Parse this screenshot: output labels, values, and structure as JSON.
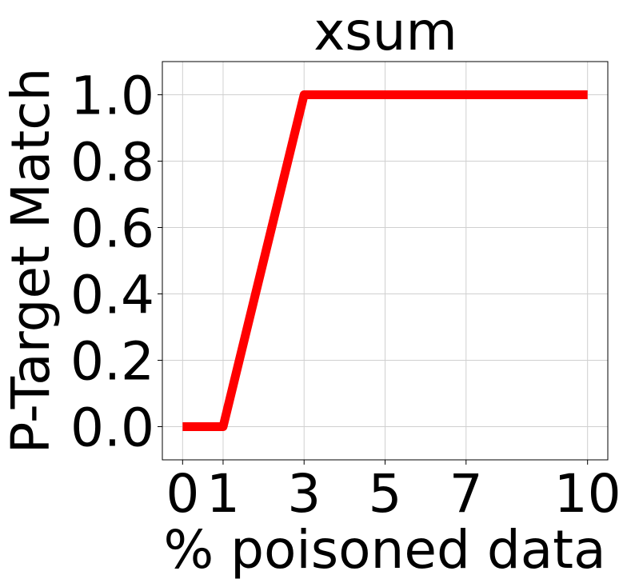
{
  "chart_data": {
    "type": "line",
    "title": "xsum",
    "xlabel": "% poisoned data",
    "ylabel": "P-Target Match",
    "xlim": [
      -0.5,
      10.5
    ],
    "ylim": [
      -0.1,
      1.1
    ],
    "x_ticks": [
      0,
      1,
      3,
      5,
      7,
      10
    ],
    "x_tick_labels": [
      "0",
      "1",
      "3",
      "5",
      "7",
      "10"
    ],
    "y_ticks": [
      0.0,
      0.2,
      0.4,
      0.6,
      0.8,
      1.0
    ],
    "y_tick_labels": [
      "0.0",
      "0.2",
      "0.4",
      "0.6",
      "0.8",
      "1.0"
    ],
    "grid": true,
    "series": [
      {
        "color": "#ff0000",
        "x": [
          0,
          1,
          3,
          5,
          7,
          10
        ],
        "y": [
          0.0,
          0.0,
          1.0,
          1.0,
          1.0,
          1.0
        ]
      }
    ]
  }
}
